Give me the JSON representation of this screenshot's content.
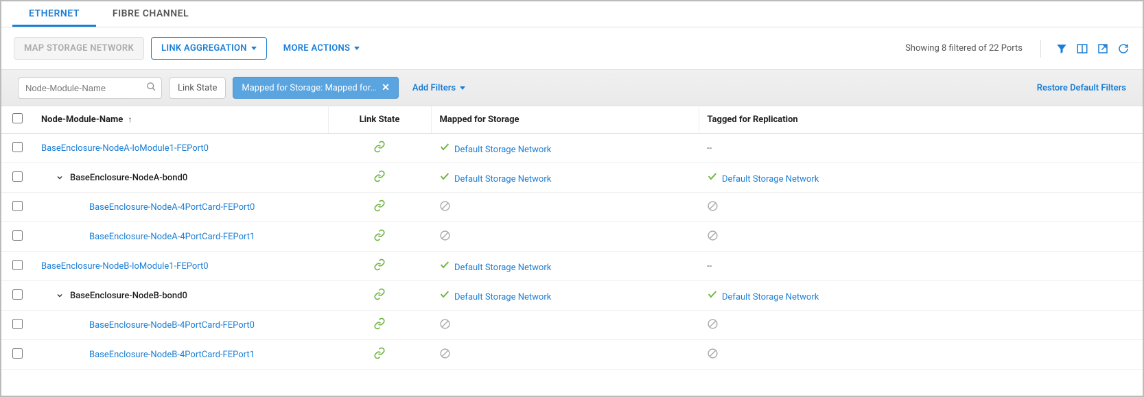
{
  "tabs": {
    "ethernet": "ETHERNET",
    "fibre": "FIBRE CHANNEL"
  },
  "toolbar": {
    "map_storage": "MAP STORAGE NETWORK",
    "link_agg": "LINK AGGREGATION",
    "more_actions": "MORE ACTIONS",
    "showing": "Showing 8 filtered of 22 Ports"
  },
  "filters": {
    "search_placeholder": "Node-Module-Name",
    "link_state": "Link State",
    "mapped_chip": "Mapped for Storage: Mapped for…",
    "add_filters": "Add Filters",
    "restore": "Restore Default Filters"
  },
  "columns": {
    "name": "Node-Module-Name",
    "link_state": "Link State",
    "mapped": "Mapped for Storage",
    "tagged": "Tagged for Replication"
  },
  "rows": [
    {
      "name": "BaseEnclosure-NodeA-IoModule1-FEPort0",
      "nameStyle": "link",
      "indent": 0,
      "expand": "",
      "mapped": "net",
      "tagged": "dash"
    },
    {
      "name": "BaseEnclosure-NodeA-bond0",
      "nameStyle": "plain",
      "indent": 1,
      "expand": "v",
      "mapped": "net",
      "tagged": "net"
    },
    {
      "name": "BaseEnclosure-NodeA-4PortCard-FEPort0",
      "nameStyle": "link",
      "indent": 2,
      "expand": "",
      "mapped": "na",
      "tagged": "na"
    },
    {
      "name": "BaseEnclosure-NodeA-4PortCard-FEPort1",
      "nameStyle": "link",
      "indent": 2,
      "expand": "",
      "mapped": "na",
      "tagged": "na"
    },
    {
      "name": "BaseEnclosure-NodeB-IoModule1-FEPort0",
      "nameStyle": "link",
      "indent": 0,
      "expand": "",
      "mapped": "net",
      "tagged": "dash"
    },
    {
      "name": "BaseEnclosure-NodeB-bond0",
      "nameStyle": "plain",
      "indent": 1,
      "expand": "v",
      "mapped": "net",
      "tagged": "net"
    },
    {
      "name": "BaseEnclosure-NodeB-4PortCard-FEPort0",
      "nameStyle": "link",
      "indent": 2,
      "expand": "",
      "mapped": "na",
      "tagged": "na"
    },
    {
      "name": "BaseEnclosure-NodeB-4PortCard-FEPort1",
      "nameStyle": "link",
      "indent": 2,
      "expand": "",
      "mapped": "na",
      "tagged": "na"
    }
  ],
  "labels": {
    "default_net": "Default Storage Network",
    "dash": "--"
  },
  "colors": {
    "primary": "#1a7ed6",
    "green": "#6fb53f",
    "muted": "#aaa"
  }
}
